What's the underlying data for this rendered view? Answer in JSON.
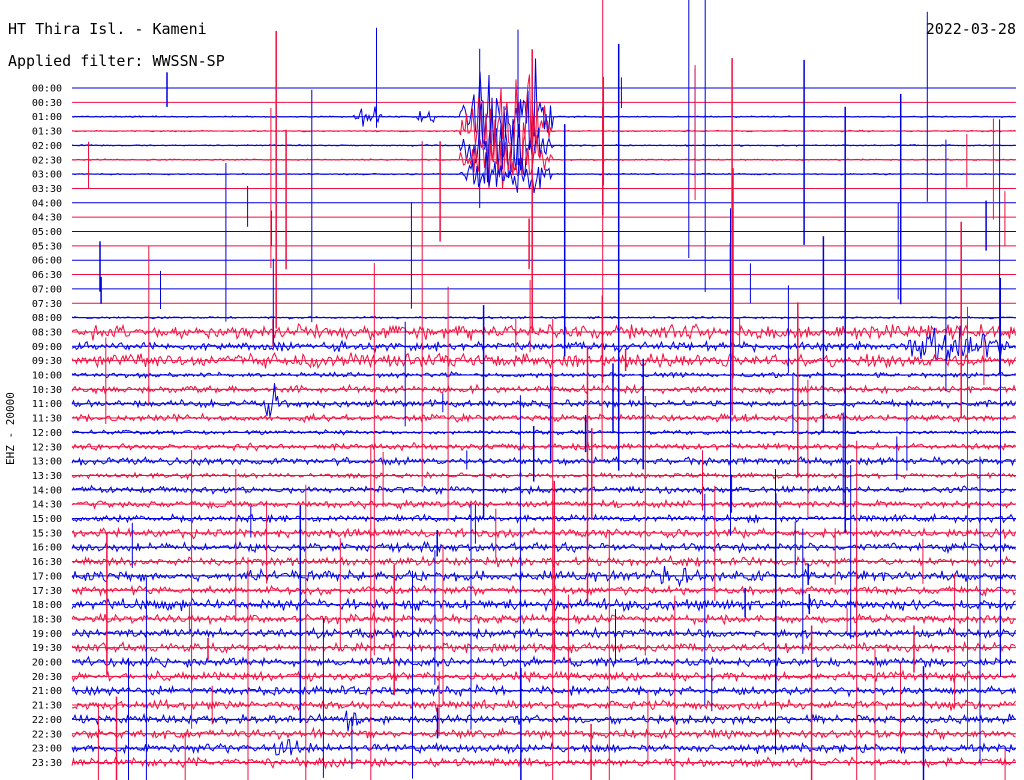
{
  "header": {
    "station": "HT Thira Isl. - Kameni",
    "filter": "Applied filter: WWSSN-SP",
    "date": "2022-03-28",
    "channel_label": "EHZ - 20000"
  },
  "chart_data": {
    "type": "line",
    "title": "HT Thira Isl. - Kameni",
    "subtitle": "Applied filter: WWSSN-SP",
    "ylabel": "EHZ - 20000",
    "xlabel": "",
    "grid": true,
    "colors": {
      "even_trace": "#0000e0",
      "odd_trace": "#f01040",
      "axis": "#000000"
    },
    "trace_labels": [
      "00:00",
      "00:30",
      "01:00",
      "01:30",
      "02:00",
      "02:30",
      "03:00",
      "03:30",
      "04:00",
      "04:30",
      "05:00",
      "05:30",
      "06:00",
      "06:30",
      "07:00",
      "07:30",
      "08:00",
      "08:30",
      "09:00",
      "09:30",
      "10:00",
      "10:30",
      "11:00",
      "11:30",
      "12:00",
      "12:30",
      "13:00",
      "13:30",
      "14:00",
      "14:30",
      "15:00",
      "15:30",
      "16:00",
      "16:30",
      "17:00",
      "17:30",
      "18:00",
      "18:30",
      "19:00",
      "19:30",
      "20:00",
      "20:30",
      "21:00",
      "21:30",
      "22:00",
      "22:30",
      "23:00",
      "23:30"
    ],
    "trace_noise": [
      0.3,
      0.3,
      0.4,
      0.4,
      0.4,
      0.4,
      0.4,
      0.4,
      0.3,
      0.3,
      0.3,
      0.3,
      0.3,
      0.3,
      0.3,
      0.3,
      0.6,
      4,
      2.5,
      4,
      1.5,
      2,
      2,
      2,
      1.2,
      1.8,
      2,
      1.5,
      2,
      2,
      2,
      2.5,
      2.5,
      2.5,
      3,
      2.5,
      3,
      2.5,
      2.5,
      2.5,
      2.5,
      2.5,
      2.5,
      2.5,
      2.5,
      2.5,
      2.5,
      2.5
    ],
    "bursts": [
      {
        "trace": 2,
        "start": 0.298,
        "end": 0.328,
        "amp": 8
      },
      {
        "trace": 2,
        "start": 0.365,
        "end": 0.385,
        "amp": 6
      },
      {
        "trace": 2,
        "start": 0.41,
        "end": 0.51,
        "amp": 35
      },
      {
        "trace": 3,
        "start": 0.41,
        "end": 0.51,
        "amp": 30
      },
      {
        "trace": 4,
        "start": 0.41,
        "end": 0.51,
        "amp": 25
      },
      {
        "trace": 5,
        "start": 0.41,
        "end": 0.51,
        "amp": 20
      },
      {
        "trace": 6,
        "start": 0.41,
        "end": 0.51,
        "amp": 14
      },
      {
        "trace": 18,
        "start": 0.87,
        "end": 1.0,
        "amp": 10
      },
      {
        "trace": 22,
        "start": 0.2,
        "end": 0.22,
        "amp": 12
      },
      {
        "trace": 34,
        "start": 0.62,
        "end": 0.66,
        "amp": 8
      },
      {
        "trace": 44,
        "start": 0.285,
        "end": 0.305,
        "amp": 10
      },
      {
        "trace": 46,
        "start": 0.21,
        "end": 0.245,
        "amp": 8
      }
    ]
  }
}
